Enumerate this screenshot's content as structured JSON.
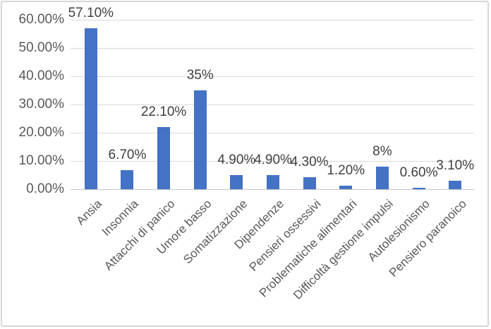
{
  "chart_data": {
    "type": "bar",
    "title": "",
    "xlabel": "",
    "ylabel": "",
    "categories": [
      "Ansia",
      "Insonnia",
      "Attacchi di panico",
      "Umore basso",
      "Somatizzazione",
      "Dipendenze",
      "Pensieri ossessivi",
      "Problematiche alimentari",
      "Difficoltà gestione impulsi",
      "Autolesionismo",
      "Pensiero paranoico"
    ],
    "values": [
      57.1,
      6.7,
      22.1,
      35,
      4.9,
      4.9,
      4.3,
      1.2,
      8,
      0.6,
      3.1
    ],
    "data_labels": [
      "57.10%",
      "6.70%",
      "22.10%",
      "35%",
      "4.90%",
      "4.90%",
      "4.30%",
      "1.20%",
      "8%",
      "0.60%",
      "3.10%"
    ],
    "y_ticks": [
      "0.00%",
      "10.00%",
      "20.00%",
      "30.00%",
      "40.00%",
      "50.00%",
      "60.00%"
    ],
    "ylim": [
      0,
      60
    ],
    "y_step": 10,
    "grid": true,
    "legend": "none",
    "colors": {
      "bar": "#4472C4",
      "gridline": "#D9D9D9",
      "axis_line": "#C6C6C6",
      "data_label_text": "#404040",
      "axis_text": "#595959",
      "border": "#D6D6D6",
      "background": "#FFFFFF"
    }
  }
}
